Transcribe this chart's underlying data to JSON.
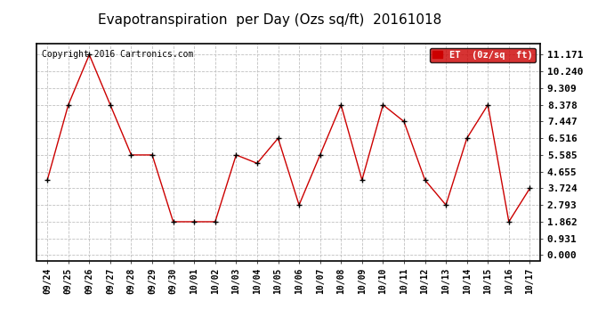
{
  "title": "Evapotranspiration  per Day (Ozs sq/ft)  20161018",
  "copyright": "Copyright 2016 Cartronics.com",
  "legend_label": "ET  (0z/sq  ft)",
  "x_labels": [
    "09/24",
    "09/25",
    "09/26",
    "09/27",
    "09/28",
    "09/29",
    "09/30",
    "10/01",
    "10/02",
    "10/03",
    "10/04",
    "10/05",
    "10/06",
    "10/07",
    "10/08",
    "10/09",
    "10/10",
    "10/11",
    "10/12",
    "10/13",
    "10/14",
    "10/15",
    "10/16",
    "10/17"
  ],
  "y_values": [
    4.19,
    8.378,
    11.171,
    8.378,
    5.585,
    5.585,
    1.862,
    1.862,
    1.862,
    5.585,
    5.12,
    6.516,
    2.793,
    5.585,
    8.378,
    4.19,
    8.378,
    7.447,
    4.19,
    2.793,
    6.516,
    8.378,
    1.862,
    3.724
  ],
  "line_color": "#cc0000",
  "marker": "+",
  "marker_color": "#000000",
  "bg_color": "#ffffff",
  "grid_color": "#c0c0c0",
  "yticks": [
    0.0,
    0.931,
    1.862,
    2.793,
    3.724,
    4.655,
    5.585,
    6.516,
    7.447,
    8.378,
    9.309,
    10.24,
    11.171
  ],
  "legend_bg": "#cc0000",
  "legend_text_color": "#ffffff",
  "title_fontsize": 11,
  "copyright_fontsize": 7,
  "tick_fontsize": 8,
  "xtick_fontsize": 7
}
